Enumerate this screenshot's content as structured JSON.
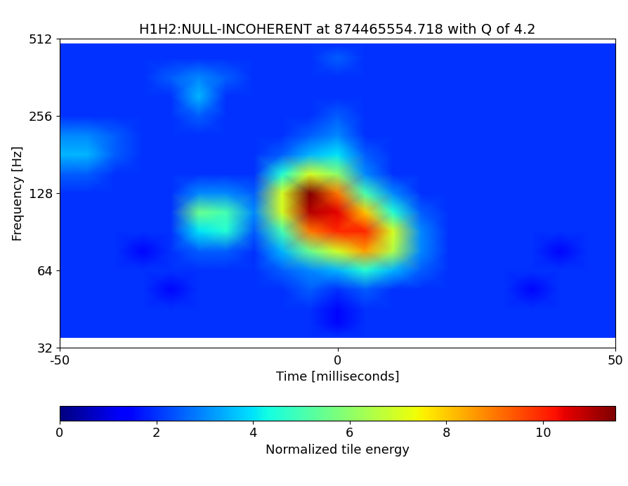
{
  "chart_data": {
    "type": "heatmap",
    "title": "H1H2:NULL-INCOHERENT at 874465554.718 with Q of 4.2",
    "x_label": "Time [milliseconds]",
    "y_label": "Frequency [Hz]",
    "x": [
      -50,
      -45,
      -40,
      -35,
      -30,
      -25,
      -20,
      -15,
      -10,
      -5,
      0,
      5,
      10,
      15,
      20,
      25,
      30,
      35,
      40,
      45,
      50
    ],
    "y": [
      35,
      40,
      45,
      54,
      64,
      76,
      91,
      108,
      128,
      152,
      181,
      215,
      256,
      304,
      362,
      431,
      490
    ],
    "values": [
      [
        2,
        2,
        2,
        2,
        2,
        2,
        2,
        2,
        2,
        2,
        2,
        2,
        2,
        2,
        2,
        2,
        2,
        2,
        2,
        2,
        2
      ],
      [
        2,
        2,
        2,
        2,
        2,
        2,
        2,
        2,
        2,
        2,
        1.5,
        2,
        2,
        2,
        2,
        2,
        2,
        2,
        2,
        2,
        2
      ],
      [
        2,
        2,
        2,
        2,
        2,
        2,
        2,
        2,
        2,
        2,
        1.5,
        2,
        2,
        2,
        2,
        2,
        2,
        2,
        2,
        2,
        2
      ],
      [
        2,
        2,
        2,
        2,
        1.5,
        2,
        2,
        2,
        2,
        2.5,
        2,
        2.5,
        2,
        2,
        2,
        2,
        2,
        1.5,
        2,
        2,
        2
      ],
      [
        2,
        2,
        2,
        2,
        2,
        2,
        2,
        2,
        2.5,
        3,
        3.5,
        4.5,
        3.5,
        2.5,
        2,
        2,
        2,
        2,
        2,
        2,
        2
      ],
      [
        2,
        2,
        2,
        1.5,
        2,
        2.5,
        2.5,
        2,
        3.5,
        5.5,
        7,
        8.5,
        6.5,
        3,
        2,
        2,
        2,
        2,
        1.5,
        2,
        2
      ],
      [
        2,
        2,
        2,
        2,
        2,
        4,
        4.5,
        2.5,
        5,
        9,
        10,
        10,
        7,
        3,
        2,
        2,
        2,
        2,
        2,
        2,
        2
      ],
      [
        2,
        2,
        2,
        2,
        2,
        5.5,
        5,
        3,
        7,
        11,
        10.5,
        8,
        4.5,
        2.5,
        2,
        2,
        2,
        2,
        2,
        2,
        2
      ],
      [
        2,
        2,
        2,
        2,
        2,
        3,
        3,
        2.5,
        7,
        11.5,
        9,
        5,
        3,
        2,
        2,
        2,
        2,
        2,
        2,
        2,
        2
      ],
      [
        2.5,
        2.5,
        2,
        2,
        2,
        2,
        2,
        2,
        4.5,
        7,
        6,
        3,
        2,
        2,
        2,
        2,
        2,
        2,
        2,
        2,
        2
      ],
      [
        3.5,
        3.5,
        2.5,
        2,
        2,
        2,
        2,
        2,
        2.5,
        3.5,
        4,
        2.5,
        2,
        2,
        2,
        2,
        2,
        2,
        2,
        2,
        2
      ],
      [
        3,
        3,
        2.5,
        2,
        2,
        2,
        2,
        2,
        2,
        2.5,
        3,
        2,
        2,
        2,
        2,
        2,
        2,
        2,
        2,
        2,
        2
      ],
      [
        2,
        2,
        2,
        2,
        2,
        2.5,
        2,
        2,
        2,
        2,
        2.5,
        2,
        2,
        2,
        2,
        2,
        2,
        2,
        2,
        2,
        2
      ],
      [
        2,
        2,
        2,
        2,
        2,
        3.5,
        2,
        2,
        2,
        2,
        2,
        2,
        2,
        2,
        2,
        2,
        2,
        2,
        2,
        2,
        2
      ],
      [
        2,
        2,
        2,
        2,
        2.5,
        3,
        2.5,
        2,
        2,
        2,
        2,
        2,
        2,
        2,
        2,
        2,
        2,
        2,
        2,
        2,
        2
      ],
      [
        2,
        2,
        2,
        2,
        2,
        2,
        2,
        2,
        2,
        2,
        2.5,
        2,
        2,
        2,
        2,
        2,
        2,
        2,
        2,
        2,
        2
      ],
      [
        2,
        2,
        2,
        2,
        2,
        2,
        2,
        2,
        2,
        2,
        2,
        2,
        2,
        2,
        2,
        2,
        2,
        2,
        2,
        2,
        2
      ]
    ],
    "xlim": [
      -50,
      50
    ],
    "xticks": [
      -50,
      0,
      50
    ],
    "ylim": [
      32,
      512
    ],
    "yticks": [
      32,
      64,
      128,
      256,
      512
    ],
    "log": "y",
    "colorbar": {
      "label": "Normalized tile energy",
      "range": [
        0,
        11.5
      ],
      "ticks": [
        0,
        2,
        4,
        6,
        8,
        10
      ]
    }
  }
}
